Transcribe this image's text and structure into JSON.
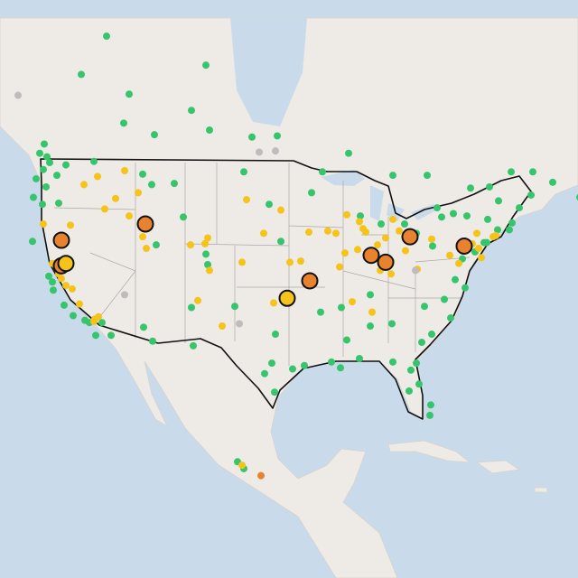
{
  "map": {
    "marker_groups": [
      {
        "color": "#36c56c",
        "size": "small",
        "points": [
          [
            -122.3,
            47.6
          ],
          [
            -122.6,
            48.1
          ],
          [
            -123.0,
            47.0
          ],
          [
            -122.7,
            45.5
          ],
          [
            -123.1,
            44.0
          ],
          [
            -121.5,
            46.5
          ],
          [
            -120.5,
            47.4
          ],
          [
            -117.4,
            47.7
          ],
          [
            -123.4,
            48.4
          ],
          [
            -122.9,
            49.2
          ],
          [
            -121.3,
            44.1
          ],
          [
            -124.1,
            44.6
          ],
          [
            -123.8,
            46.2
          ],
          [
            -113.5,
            53.5
          ],
          [
            -114.1,
            51.0
          ],
          [
            -106.6,
            52.1
          ],
          [
            -104.6,
            50.4
          ],
          [
            -97.1,
            49.9
          ],
          [
            -89.2,
            48.4
          ],
          [
            -79.4,
            43.7
          ],
          [
            -75.7,
            45.4
          ],
          [
            -73.6,
            45.5
          ],
          [
            -71.2,
            46.8
          ],
          [
            -66.6,
            45.9
          ],
          [
            -63.6,
            44.6
          ],
          [
            -60.2,
            46.1
          ],
          [
            -110.7,
            50.0
          ],
          [
            -118.8,
            55.2
          ],
          [
            -116.0,
            58.5
          ],
          [
            -105.0,
            56.0
          ],
          [
            -99.9,
            49.8
          ],
          [
            -80.5,
            46.5
          ],
          [
            -84.3,
            46.5
          ],
          [
            -128.6,
            54.5
          ],
          [
            -122.4,
            37.8
          ],
          [
            -122.0,
            37.3
          ],
          [
            -121.9,
            36.6
          ],
          [
            -120.7,
            35.3
          ],
          [
            -119.7,
            34.4
          ],
          [
            -118.4,
            34.0
          ],
          [
            -117.9,
            33.8
          ],
          [
            -117.2,
            32.7
          ],
          [
            -116.5,
            33.8
          ],
          [
            -115.5,
            32.7
          ],
          [
            -124.2,
            40.8
          ],
          [
            -111.9,
            33.4
          ],
          [
            -110.9,
            32.2
          ],
          [
            -106.6,
            35.1
          ],
          [
            -106.4,
            31.8
          ],
          [
            -104.8,
            38.8
          ],
          [
            -105.0,
            39.7
          ],
          [
            -108.5,
            45.8
          ],
          [
            -111.0,
            45.7
          ],
          [
            -112.0,
            46.6
          ],
          [
            -107.5,
            42.9
          ],
          [
            -110.5,
            40.5
          ],
          [
            -97.7,
            30.3
          ],
          [
            -98.5,
            29.4
          ],
          [
            -95.4,
            29.8
          ],
          [
            -94.1,
            30.1
          ],
          [
            -97.4,
            27.8
          ],
          [
            -97.3,
            32.8
          ],
          [
            -101.8,
            35.2
          ],
          [
            -96.7,
            40.8
          ],
          [
            -98.0,
            44.0
          ],
          [
            -100.8,
            46.8
          ],
          [
            -93.3,
            45.0
          ],
          [
            -92.1,
            46.8
          ],
          [
            -90.1,
            29.9
          ],
          [
            -91.1,
            30.4
          ],
          [
            -88.0,
            30.7
          ],
          [
            -86.8,
            33.5
          ],
          [
            -84.4,
            33.7
          ],
          [
            -81.1,
            32.1
          ],
          [
            -80.0,
            32.8
          ],
          [
            -81.7,
            30.3
          ],
          [
            -82.5,
            27.9
          ],
          [
            -81.4,
            28.5
          ],
          [
            -80.2,
            25.8
          ],
          [
            -80.1,
            26.7
          ],
          [
            -82.3,
            29.7
          ],
          [
            -84.3,
            30.4
          ],
          [
            -86.8,
            36.2
          ],
          [
            -90.0,
            35.1
          ],
          [
            -78.6,
            35.8
          ],
          [
            -80.8,
            35.2
          ],
          [
            -77.9,
            34.2
          ],
          [
            -77.4,
            37.5
          ],
          [
            -76.3,
            36.8
          ],
          [
            -89.4,
            32.3
          ],
          [
            -92.3,
            34.7
          ],
          [
            -71.1,
            42.4
          ],
          [
            -71.4,
            41.8
          ],
          [
            -72.7,
            41.8
          ],
          [
            -73.9,
            40.7
          ],
          [
            -74.2,
            40.7
          ],
          [
            -73.8,
            42.7
          ],
          [
            -76.1,
            43.0
          ],
          [
            -77.6,
            43.2
          ],
          [
            -78.9,
            42.9
          ],
          [
            -70.3,
            43.7
          ],
          [
            -69.0,
            44.8
          ],
          [
            -68.8,
            46.8
          ],
          [
            -72.6,
            44.3
          ],
          [
            -75.2,
            39.9
          ],
          [
            -76.6,
            39.3
          ],
          [
            -79.9,
            40.4
          ],
          [
            -81.7,
            41.5
          ],
          [
            -83.0,
            42.3
          ],
          [
            -85.6,
            42.3
          ],
          [
            -87.9,
            43.0
          ],
          [
            -101.5,
            21.8
          ],
          [
            -100.8,
            21.2
          ]
        ]
      },
      {
        "color": "#f5c319",
        "size": "small",
        "points": [
          [
            -121.5,
            38.5
          ],
          [
            -121.0,
            37.6
          ],
          [
            -120.5,
            37.0
          ],
          [
            -119.8,
            36.7
          ],
          [
            -119.0,
            35.4
          ],
          [
            -121.3,
            38.0
          ],
          [
            -122.0,
            38.9
          ],
          [
            -117.3,
            34.1
          ],
          [
            -117.4,
            33.9
          ],
          [
            -116.9,
            34.3
          ],
          [
            -116.2,
            43.6
          ],
          [
            -114.0,
            46.9
          ],
          [
            -112.5,
            45.0
          ],
          [
            -117.0,
            46.4
          ],
          [
            -118.5,
            45.7
          ],
          [
            -120.0,
            42.2
          ],
          [
            -123.0,
            42.3
          ],
          [
            -115.0,
            44.5
          ],
          [
            -113.5,
            43.0
          ],
          [
            -111.6,
            40.2
          ],
          [
            -112.0,
            41.2
          ],
          [
            -105.1,
            40.6
          ],
          [
            -104.8,
            41.1
          ],
          [
            -106.7,
            40.5
          ],
          [
            -104.6,
            38.3
          ],
          [
            -101.0,
            39.0
          ],
          [
            -98.6,
            41.5
          ],
          [
            -100.5,
            44.4
          ],
          [
            -96.7,
            43.5
          ],
          [
            -97.5,
            35.5
          ],
          [
            -95.9,
            36.2
          ],
          [
            -95.7,
            39.0
          ],
          [
            -94.5,
            39.1
          ],
          [
            -105.9,
            35.7
          ],
          [
            -103.2,
            33.5
          ],
          [
            -90.2,
            38.6
          ],
          [
            -89.6,
            39.8
          ],
          [
            -88.2,
            40.1
          ],
          [
            -87.6,
            41.9
          ],
          [
            -87.3,
            41.6
          ],
          [
            -86.2,
            39.8
          ],
          [
            -85.1,
            41.1
          ],
          [
            -84.5,
            39.1
          ],
          [
            -83.6,
            41.7
          ],
          [
            -84.5,
            38.0
          ],
          [
            -85.7,
            38.3
          ],
          [
            -86.0,
            40.5
          ],
          [
            -88.0,
            42.5
          ],
          [
            -89.4,
            43.1
          ],
          [
            -91.5,
            41.7
          ],
          [
            -93.6,
            41.6
          ],
          [
            -90.6,
            41.5
          ],
          [
            -84.3,
            42.7
          ],
          [
            -82.9,
            40.0
          ],
          [
            -80.0,
            41.0
          ],
          [
            -75.5,
            40.6
          ],
          [
            -76.7,
            40.3
          ],
          [
            -77.0,
            38.9
          ],
          [
            -74.8,
            40.2
          ],
          [
            -74.5,
            39.4
          ],
          [
            -73.2,
            41.2
          ],
          [
            -72.9,
            41.3
          ],
          [
            -75.0,
            41.5
          ],
          [
            -78.0,
            39.6
          ],
          [
            -81.6,
            38.4
          ],
          [
            -88.8,
            35.6
          ],
          [
            -86.6,
            34.7
          ],
          [
            -101.0,
            21.5
          ]
        ]
      },
      {
        "color": "#bdbdbd",
        "size": "small",
        "points": [
          [
            -125.8,
            53.4
          ],
          [
            -99.1,
            48.5
          ],
          [
            -97.3,
            48.6
          ],
          [
            -114.0,
            36.2
          ],
          [
            -101.3,
            33.7
          ],
          [
            -81.8,
            38.3
          ]
        ]
      },
      {
        "color": "#e8822f",
        "size": "small",
        "points": [
          [
            -98.9,
            20.6
          ]
        ]
      },
      {
        "color": "#e8822f",
        "size": "large",
        "points": [
          [
            -121.0,
            40.9
          ],
          [
            -121.0,
            38.7
          ],
          [
            -111.7,
            42.3
          ],
          [
            -93.5,
            37.4
          ],
          [
            -86.7,
            39.6
          ],
          [
            -85.1,
            39.0
          ],
          [
            -82.4,
            41.2
          ],
          [
            -76.4,
            40.4
          ]
        ]
      },
      {
        "color": "#f5c319",
        "size": "large",
        "points": [
          [
            -120.5,
            38.9
          ],
          [
            -96.0,
            35.9
          ]
        ]
      }
    ]
  }
}
